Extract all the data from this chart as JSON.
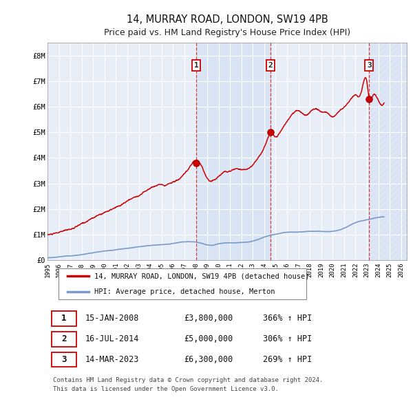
{
  "title": "14, MURRAY ROAD, LONDON, SW19 4PB",
  "subtitle": "Price paid vs. HM Land Registry's House Price Index (HPI)",
  "title_fontsize": 10.5,
  "subtitle_fontsize": 9,
  "background_color": "#ffffff",
  "plot_bg_color": "#e8eef8",
  "grid_color": "#ffffff",
  "ylim": [
    0,
    8500000
  ],
  "yticks": [
    0,
    1000000,
    2000000,
    3000000,
    4000000,
    5000000,
    6000000,
    7000000,
    8000000
  ],
  "ytick_labels": [
    "£0",
    "£1M",
    "£2M",
    "£3M",
    "£4M",
    "£5M",
    "£6M",
    "£7M",
    "£8M"
  ],
  "xlim_start": 1995.0,
  "xlim_end": 2026.5,
  "xtick_years": [
    1995,
    1996,
    1997,
    1998,
    1999,
    2000,
    2001,
    2002,
    2003,
    2004,
    2005,
    2006,
    2007,
    2008,
    2009,
    2010,
    2011,
    2012,
    2013,
    2014,
    2015,
    2016,
    2017,
    2018,
    2019,
    2020,
    2021,
    2022,
    2023,
    2024,
    2025,
    2026
  ],
  "red_line_color": "#cc0000",
  "blue_line_color": "#7799cc",
  "vline_color": "#dd2222",
  "shade_color": "#c8d8f0",
  "sale_markers": [
    {
      "year": 2008.04,
      "value": 3800000,
      "label": "1"
    },
    {
      "year": 2014.54,
      "value": 5000000,
      "label": "2"
    },
    {
      "year": 2023.2,
      "value": 6300000,
      "label": "3"
    }
  ],
  "sale_table": [
    {
      "num": "1",
      "date": "15-JAN-2008",
      "price": "£3,800,000",
      "pct": "366% ↑ HPI"
    },
    {
      "num": "2",
      "date": "16-JUL-2014",
      "price": "£5,000,000",
      "pct": "306% ↑ HPI"
    },
    {
      "num": "3",
      "date": "14-MAR-2023",
      "price": "£6,300,000",
      "pct": "269% ↑ HPI"
    }
  ],
  "legend_entries": [
    "14, MURRAY ROAD, LONDON, SW19 4PB (detached house)",
    "HPI: Average price, detached house, Merton"
  ],
  "footnote": "Contains HM Land Registry data © Crown copyright and database right 2024.\nThis data is licensed under the Open Government Licence v3.0."
}
